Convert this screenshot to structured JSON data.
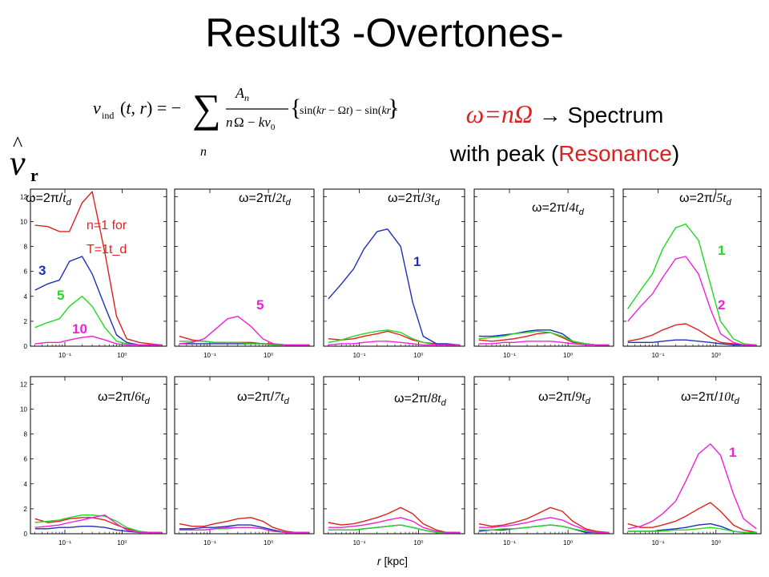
{
  "title": "Result3 -Overtones-",
  "spectrum_note": {
    "omega": "ω=nΩ",
    "arrow_text": " → Spectrum",
    "line2_pre": "with peak (",
    "resonance": "Resonance",
    "line2_post": ")"
  },
  "x_axis_label": {
    "symbol": "r",
    "unit": "[kpc]"
  },
  "colors": {
    "red": "#e0201c",
    "blue": "#1f2fb8",
    "green": "#22d822",
    "magenta": "#f020d8",
    "label_red": "#e02020"
  },
  "chart_data": {
    "type": "line",
    "x_scale": "log",
    "xlim": [
      0.025,
      6
    ],
    "ylim": [
      0,
      12.6
    ],
    "yticks": [
      0,
      2,
      4,
      6,
      8,
      10,
      12
    ],
    "xtick_labels": [
      "10⁻¹",
      "10⁰"
    ],
    "x": [
      0.03,
      0.05,
      0.08,
      0.12,
      0.2,
      0.3,
      0.5,
      0.8,
      1.2,
      2,
      3,
      5
    ],
    "panels": [
      {
        "label": "ω=2π/t_d",
        "label_parts": [
          "ω=2π/",
          "t",
          "d"
        ],
        "annotations": [
          {
            "text": "n=1 for",
            "color": "label_red"
          },
          {
            "text": "T=1t_d",
            "color": "label_red"
          },
          {
            "text": "3",
            "color": "blue"
          },
          {
            "text": "5",
            "color": "green"
          },
          {
            "text": "10",
            "color": "magenta"
          }
        ],
        "series": [
          {
            "color": "red",
            "values": [
              9.7,
              9.6,
              9.2,
              9.2,
              11.5,
              12.4,
              7.5,
              2.4,
              0.6,
              0.3,
              0.2,
              0.1
            ]
          },
          {
            "color": "blue",
            "values": [
              4.5,
              5.0,
              5.3,
              6.8,
              7.2,
              5.8,
              3.2,
              0.9,
              0.3,
              0.1,
              0.1,
              0.1
            ]
          },
          {
            "color": "green",
            "values": [
              1.5,
              1.9,
              2.2,
              3.2,
              4.0,
              3.2,
              1.5,
              0.4,
              0.2,
              0.1,
              0.1,
              0.1
            ]
          },
          {
            "color": "magenta",
            "values": [
              0.2,
              0.3,
              0.3,
              0.5,
              0.7,
              0.8,
              0.5,
              0.2,
              0.1,
              0.1,
              0.1,
              0.1
            ]
          }
        ]
      },
      {
        "label": "ω=2π/2t_d",
        "label_parts": [
          "ω=2π/",
          "2t",
          "d"
        ],
        "annotations": [
          {
            "text": "5",
            "color": "magenta"
          }
        ],
        "series": [
          {
            "color": "red",
            "values": [
              0.8,
              0.5,
              0.4,
              0.3,
              0.3,
              0.3,
              0.3,
              0.2,
              0.2,
              0.1,
              0.1,
              0.1
            ]
          },
          {
            "color": "blue",
            "values": [
              0.2,
              0.2,
              0.2,
              0.2,
              0.2,
              0.2,
              0.2,
              0.2,
              0.1,
              0.1,
              0.1,
              0.1
            ]
          },
          {
            "color": "green",
            "values": [
              0.4,
              0.4,
              0.4,
              0.3,
              0.3,
              0.3,
              0.2,
              0.2,
              0.1,
              0.1,
              0.1,
              0.1
            ]
          },
          {
            "color": "magenta",
            "values": [
              0.2,
              0.3,
              0.6,
              1.3,
              2.2,
              2.4,
              1.6,
              0.6,
              0.2,
              0.1,
              0.1,
              0.1
            ]
          }
        ]
      },
      {
        "label": "ω=2π/3t_d",
        "label_parts": [
          "ω=2π/",
          "3t",
          "d"
        ],
        "annotations": [
          {
            "text": "1",
            "color": "blue"
          }
        ],
        "series": [
          {
            "color": "red",
            "values": [
              0.6,
              0.5,
              0.6,
              0.8,
              1.0,
              1.2,
              0.9,
              0.5,
              0.3,
              0.2,
              0.1,
              0.1
            ]
          },
          {
            "color": "blue",
            "values": [
              3.8,
              5.0,
              6.2,
              7.8,
              9.2,
              9.4,
              8.0,
              3.5,
              0.8,
              0.2,
              0.2,
              0.1
            ]
          },
          {
            "color": "green",
            "values": [
              0.3,
              0.5,
              0.8,
              1.0,
              1.2,
              1.3,
              1.1,
              0.6,
              0.3,
              0.1,
              0.1,
              0.1
            ]
          },
          {
            "color": "magenta",
            "values": [
              0.1,
              0.2,
              0.2,
              0.3,
              0.4,
              0.4,
              0.3,
              0.2,
              0.1,
              0.1,
              0.1,
              0.1
            ]
          }
        ]
      },
      {
        "label": "ω=2π/4t_d",
        "label_parts": [
          "ω=2π/",
          "4t",
          "d"
        ],
        "annotations": [],
        "series": [
          {
            "color": "red",
            "values": [
              0.5,
              0.4,
              0.5,
              0.6,
              0.8,
              1.0,
              1.1,
              0.7,
              0.3,
              0.2,
              0.1,
              0.1
            ]
          },
          {
            "color": "blue",
            "values": [
              0.8,
              0.8,
              0.9,
              1.0,
              1.2,
              1.3,
              1.3,
              1.0,
              0.4,
              0.2,
              0.1,
              0.1
            ]
          },
          {
            "color": "green",
            "values": [
              0.6,
              0.7,
              0.8,
              1.0,
              1.1,
              1.2,
              1.1,
              0.8,
              0.4,
              0.2,
              0.1,
              0.1
            ]
          },
          {
            "color": "magenta",
            "values": [
              0.2,
              0.2,
              0.3,
              0.3,
              0.4,
              0.4,
              0.4,
              0.3,
              0.2,
              0.1,
              0.1,
              0.1
            ]
          }
        ]
      },
      {
        "label": "ω=2π/5t_d",
        "label_parts": [
          "ω=2π/",
          "5t",
          "d"
        ],
        "annotations": [
          {
            "text": "1",
            "color": "green"
          },
          {
            "text": "2",
            "color": "magenta"
          }
        ],
        "series": [
          {
            "color": "red",
            "values": [
              0.4,
              0.6,
              0.9,
              1.3,
              1.7,
              1.8,
              1.3,
              0.7,
              0.3,
              0.2,
              0.1,
              0.1
            ]
          },
          {
            "color": "blue",
            "values": [
              0.3,
              0.3,
              0.3,
              0.4,
              0.5,
              0.5,
              0.4,
              0.3,
              0.2,
              0.1,
              0.1,
              0.1
            ]
          },
          {
            "color": "green",
            "values": [
              3.0,
              4.5,
              5.8,
              7.8,
              9.5,
              9.8,
              8.5,
              5.0,
              2.0,
              0.6,
              0.2,
              0.1
            ]
          },
          {
            "color": "magenta",
            "values": [
              2.0,
              3.2,
              4.2,
              5.5,
              7.0,
              7.2,
              5.8,
              3.0,
              1.0,
              0.3,
              0.1,
              0.1
            ]
          }
        ]
      },
      {
        "label": "ω=2π/6t_d",
        "label_parts": [
          "ω=2π/",
          "6t",
          "d"
        ],
        "annotations": [],
        "series": [
          {
            "color": "red",
            "values": [
              1.2,
              0.9,
              1.0,
              1.2,
              1.3,
              1.3,
              1.1,
              0.7,
              0.4,
              0.2,
              0.1,
              0.1
            ]
          },
          {
            "color": "blue",
            "values": [
              0.4,
              0.4,
              0.5,
              0.5,
              0.6,
              0.6,
              0.5,
              0.3,
              0.2,
              0.1,
              0.1,
              0.1
            ]
          },
          {
            "color": "green",
            "values": [
              0.9,
              1.0,
              1.1,
              1.3,
              1.5,
              1.5,
              1.4,
              1.0,
              0.5,
              0.2,
              0.1,
              0.1
            ]
          },
          {
            "color": "magenta",
            "values": [
              0.5,
              0.6,
              0.7,
              0.9,
              1.1,
              1.3,
              1.5,
              0.8,
              0.3,
              0.1,
              0.1,
              0.1
            ]
          }
        ]
      },
      {
        "label": "ω=2π/7t_d",
        "label_parts": [
          "ω=2π/",
          "7t",
          "d"
        ],
        "annotations": [],
        "series": [
          {
            "color": "red",
            "values": [
              0.8,
              0.6,
              0.6,
              0.8,
              1.0,
              1.2,
              1.3,
              1.0,
              0.5,
              0.2,
              0.1,
              0.1
            ]
          },
          {
            "color": "blue",
            "values": [
              0.4,
              0.4,
              0.5,
              0.5,
              0.6,
              0.7,
              0.7,
              0.5,
              0.3,
              0.1,
              0.1,
              0.1
            ]
          },
          {
            "color": "green",
            "values": [
              0.3,
              0.3,
              0.3,
              0.4,
              0.4,
              0.5,
              0.5,
              0.4,
              0.2,
              0.1,
              0.1,
              0.1
            ]
          },
          {
            "color": "magenta",
            "values": [
              0.3,
              0.3,
              0.3,
              0.4,
              0.5,
              0.5,
              0.5,
              0.4,
              0.2,
              0.1,
              0.1,
              0.1
            ]
          }
        ]
      },
      {
        "label": "ω=2π/8t_d",
        "label_parts": [
          "ω=2π/",
          "8t",
          "d"
        ],
        "annotations": [],
        "series": [
          {
            "color": "red",
            "values": [
              0.9,
              0.7,
              0.8,
              1.0,
              1.3,
              1.6,
              2.1,
              1.6,
              0.8,
              0.3,
              0.1,
              0.1
            ]
          },
          {
            "color": "blue",
            "values": [
              0.3,
              0.3,
              0.3,
              0.4,
              0.5,
              0.6,
              0.7,
              0.5,
              0.3,
              0.1,
              0.1,
              0.1
            ]
          },
          {
            "color": "green",
            "values": [
              0.3,
              0.3,
              0.3,
              0.4,
              0.5,
              0.6,
              0.7,
              0.5,
              0.3,
              0.1,
              0.1,
              0.1
            ]
          },
          {
            "color": "magenta",
            "values": [
              0.5,
              0.5,
              0.6,
              0.7,
              0.9,
              1.1,
              1.3,
              1.0,
              0.5,
              0.2,
              0.1,
              0.1
            ]
          }
        ]
      },
      {
        "label": "ω=2π/9t_d",
        "label_parts": [
          "ω=2π/",
          "9t",
          "d"
        ],
        "annotations": [],
        "series": [
          {
            "color": "red",
            "values": [
              0.8,
              0.6,
              0.7,
              0.9,
              1.2,
              1.6,
              2.1,
              1.8,
              1.0,
              0.4,
              0.2,
              0.1
            ]
          },
          {
            "color": "blue",
            "values": [
              0.2,
              0.3,
              0.3,
              0.4,
              0.5,
              0.6,
              0.7,
              0.6,
              0.4,
              0.1,
              0.1,
              0.1
            ]
          },
          {
            "color": "green",
            "values": [
              0.3,
              0.3,
              0.4,
              0.4,
              0.5,
              0.6,
              0.7,
              0.6,
              0.4,
              0.2,
              0.1,
              0.1
            ]
          },
          {
            "color": "magenta",
            "values": [
              0.5,
              0.5,
              0.6,
              0.7,
              0.9,
              1.1,
              1.3,
              1.1,
              0.7,
              0.3,
              0.1,
              0.1
            ]
          }
        ]
      },
      {
        "label": "ω=2π/10t_d",
        "label_parts": [
          "ω=2π/",
          "10t",
          "d"
        ],
        "annotations": [
          {
            "text": "1",
            "color": "magenta"
          }
        ],
        "series": [
          {
            "color": "red",
            "values": [
              0.8,
              0.5,
              0.5,
              0.7,
              1.0,
              1.4,
              2.0,
              2.5,
              1.8,
              0.7,
              0.3,
              0.1
            ]
          },
          {
            "color": "blue",
            "values": [
              0.2,
              0.2,
              0.2,
              0.3,
              0.4,
              0.5,
              0.7,
              0.8,
              0.6,
              0.2,
              0.1,
              0.1
            ]
          },
          {
            "color": "green",
            "values": [
              0.2,
              0.2,
              0.2,
              0.2,
              0.3,
              0.3,
              0.4,
              0.5,
              0.4,
              0.2,
              0.1,
              0.1
            ]
          },
          {
            "color": "magenta",
            "values": [
              0.4,
              0.6,
              1.0,
              1.6,
              2.6,
              4.2,
              6.4,
              7.2,
              6.3,
              3.2,
              1.2,
              0.4
            ]
          }
        ]
      }
    ]
  }
}
